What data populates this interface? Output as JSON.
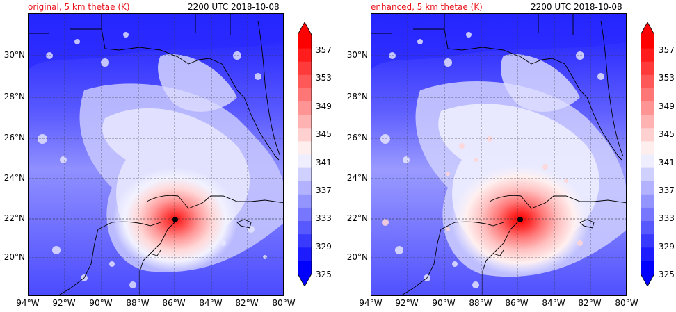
{
  "panels": [
    {
      "id": "original",
      "title_left": "original, 5 km thetae (K)",
      "title_right": "2200 UTC 2018-10-08",
      "title_left_color": "#e8141b",
      "marker": {
        "lon": -86.0,
        "lat": 21.9
      }
    },
    {
      "id": "enhanced",
      "title_left": "enhanced, 5 km thetae (K)",
      "title_right": "2200 UTC 2018-10-08",
      "title_left_color": "#e8141b",
      "marker": {
        "lon": -85.9,
        "lat": 21.9
      }
    }
  ],
  "lat_ticks": [
    "30°N",
    "28°N",
    "26°N",
    "24°N",
    "22°N",
    "20°N"
  ],
  "lon_ticks": [
    "94°W",
    "92°W",
    "90°W",
    "88°W",
    "86°W",
    "84°W",
    "82°W",
    "80°W"
  ],
  "map_extent": {
    "lon_min": -94,
    "lon_max": -80,
    "lat_min": 18.2,
    "lat_max": 32
  },
  "colorbar": {
    "labels": [
      "357",
      "353",
      "349",
      "345",
      "341",
      "337",
      "333",
      "329",
      "325"
    ],
    "levels": [
      325,
      327,
      329,
      331,
      333,
      335,
      337,
      339,
      341,
      343,
      345,
      347,
      349,
      351,
      353,
      355,
      357,
      359
    ],
    "colors": [
      "#0000ff",
      "#1c1cff",
      "#3a3aff",
      "#5858ff",
      "#7676ff",
      "#9494ff",
      "#b2b2ff",
      "#d0d0ff",
      "#eeeeff",
      "#ffeeee",
      "#ffd0d0",
      "#ffb2b2",
      "#ff9494",
      "#ff7676",
      "#ff5858",
      "#ff3a3a",
      "#ff1c1c",
      "#ff0000"
    ],
    "cmap": "bwr"
  }
}
